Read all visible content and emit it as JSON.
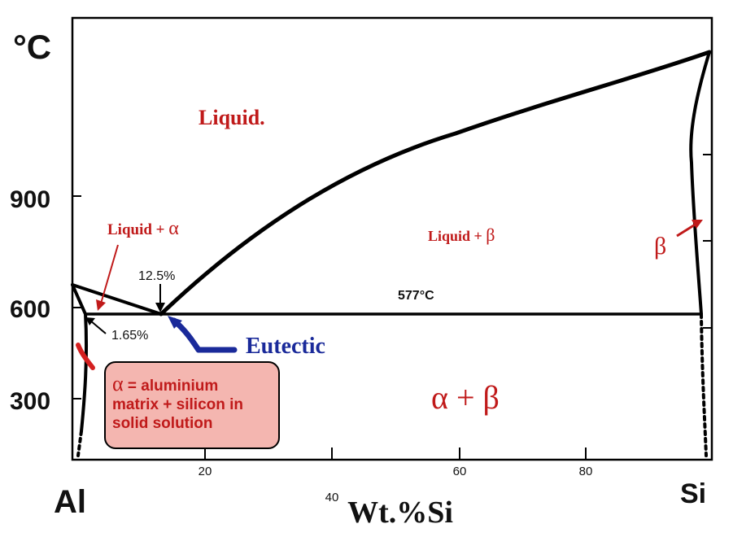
{
  "axes": {
    "y_unit": "°C",
    "y_ticks": [
      "900",
      "600",
      "300"
    ],
    "x_ticks": [
      "20",
      "40",
      "60",
      "80"
    ],
    "x_label": "Wt.%Si",
    "left_end": "Al",
    "right_end": "Si"
  },
  "regions": {
    "liquid": "Liquid.",
    "liquid_alpha_text": "Liquid + ",
    "liquid_alpha_greek": "α",
    "liquid_beta_text": "Liquid + ",
    "liquid_beta_greek": "β",
    "beta": "β",
    "alpha_beta": "α + β"
  },
  "annotations": {
    "eutectic_composition": "12.5%",
    "eutectic_temperature": "577°C",
    "solubility_limit": "1.65%",
    "eutectic": "Eutectic"
  },
  "note": {
    "alpha_symbol": "α",
    "line1": " = aluminium",
    "line2": "matrix + silicon in",
    "line3": "solid solution"
  },
  "colors": {
    "red_label": "#c01a1a",
    "blue_label": "#1a2a9a",
    "note_fill": "#f4b6b0",
    "line": "#000000"
  }
}
